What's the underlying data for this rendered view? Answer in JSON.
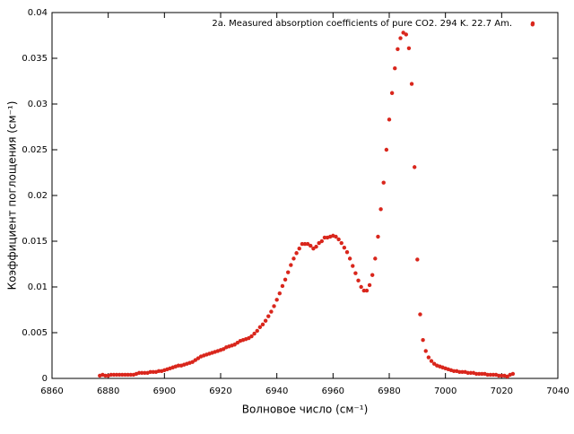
{
  "chart_data": {
    "type": "scatter",
    "x_label": "Волновое число (см⁻¹)",
    "y_label": "Коэффициент поглощения (см⁻¹)",
    "xlim": [
      6860,
      7040
    ],
    "ylim": [
      0,
      0.04
    ],
    "xticks": [
      6860,
      6880,
      6900,
      6920,
      6940,
      6960,
      6980,
      7000,
      7020,
      7040
    ],
    "yticks": [
      0,
      0.005,
      0.01,
      0.015,
      0.02,
      0.025,
      0.03,
      0.035,
      0.04
    ],
    "legend": "top-right",
    "series": [
      {
        "name": "2a. Measured absorption coefficients of pure CO2. 294 K. 22.7 Am.",
        "color": "#d9261c",
        "x": [
          6877,
          6878,
          6879,
          6880,
          6881,
          6882,
          6883,
          6884,
          6885,
          6886,
          6887,
          6888,
          6889,
          6890,
          6891,
          6892,
          6893,
          6894,
          6895,
          6896,
          6897,
          6898,
          6899,
          6900,
          6901,
          6902,
          6903,
          6904,
          6905,
          6906,
          6907,
          6908,
          6909,
          6910,
          6911,
          6912,
          6913,
          6914,
          6915,
          6916,
          6917,
          6918,
          6919,
          6920,
          6921,
          6922,
          6923,
          6924,
          6925,
          6926,
          6927,
          6928,
          6929,
          6930,
          6931,
          6932,
          6933,
          6934,
          6935,
          6936,
          6937,
          6938,
          6939,
          6940,
          6941,
          6942,
          6943,
          6944,
          6945,
          6946,
          6947,
          6948,
          6949,
          6950,
          6951,
          6952,
          6953,
          6954,
          6955,
          6956,
          6957,
          6958,
          6959,
          6960,
          6961,
          6962,
          6963,
          6964,
          6965,
          6966,
          6967,
          6968,
          6969,
          6970,
          6971,
          6972,
          6973,
          6974,
          6975,
          6976,
          6977,
          6978,
          6979,
          6980,
          6981,
          6982,
          6983,
          6984,
          6985,
          6986,
          6987,
          6988,
          6989,
          6990,
          6991,
          6992,
          6993,
          6994,
          6995,
          6996,
          6997,
          6998,
          6999,
          7000,
          7001,
          7002,
          7003,
          7004,
          7005,
          7006,
          7007,
          7008,
          7009,
          7010,
          7011,
          7012,
          7013,
          7014,
          7015,
          7016,
          7017,
          7018,
          7019,
          7020,
          7021,
          7022,
          7023,
          7024,
          7031
        ],
        "values": [
          0.0003,
          0.0004,
          0.0003,
          0.0003,
          0.0004,
          0.0004,
          0.0004,
          0.0004,
          0.0004,
          0.0004,
          0.0004,
          0.0004,
          0.0004,
          0.0005,
          0.0006,
          0.0006,
          0.0006,
          0.0006,
          0.0007,
          0.0007,
          0.0007,
          0.0008,
          0.0008,
          0.0009,
          0.001,
          0.0011,
          0.0012,
          0.0013,
          0.0014,
          0.0014,
          0.0015,
          0.0016,
          0.0017,
          0.0018,
          0.002,
          0.0022,
          0.0024,
          0.0025,
          0.0026,
          0.0027,
          0.0028,
          0.0029,
          0.003,
          0.0031,
          0.0032,
          0.0034,
          0.0035,
          0.0036,
          0.0037,
          0.0039,
          0.0041,
          0.0042,
          0.0043,
          0.0044,
          0.0046,
          0.0049,
          0.0052,
          0.0056,
          0.0059,
          0.0063,
          0.0068,
          0.0073,
          0.0079,
          0.0086,
          0.0093,
          0.0101,
          0.0108,
          0.0116,
          0.0124,
          0.0131,
          0.0137,
          0.0142,
          0.0147,
          0.0147,
          0.0147,
          0.0145,
          0.0142,
          0.0144,
          0.0148,
          0.015,
          0.0154,
          0.0154,
          0.0155,
          0.0156,
          0.0155,
          0.0152,
          0.0148,
          0.0143,
          0.0138,
          0.0131,
          0.0123,
          0.0115,
          0.0107,
          0.01,
          0.0096,
          0.0096,
          0.0102,
          0.0113,
          0.0131,
          0.0155,
          0.0185,
          0.0214,
          0.025,
          0.0283,
          0.0312,
          0.0339,
          0.036,
          0.0372,
          0.0378,
          0.0376,
          0.0361,
          0.0322,
          0.0231,
          0.013,
          0.007,
          0.0042,
          0.003,
          0.0023,
          0.0019,
          0.0016,
          0.0014,
          0.0013,
          0.0012,
          0.0011,
          0.001,
          0.0009,
          0.0008,
          0.0008,
          0.0007,
          0.0007,
          0.0007,
          0.0006,
          0.0006,
          0.0006,
          0.0005,
          0.0005,
          0.0005,
          0.0005,
          0.0004,
          0.0004,
          0.0004,
          0.0004,
          0.0003,
          0.0003,
          0.0003,
          0.0002,
          0.0004,
          0.0005,
          0.0387
        ]
      }
    ]
  }
}
